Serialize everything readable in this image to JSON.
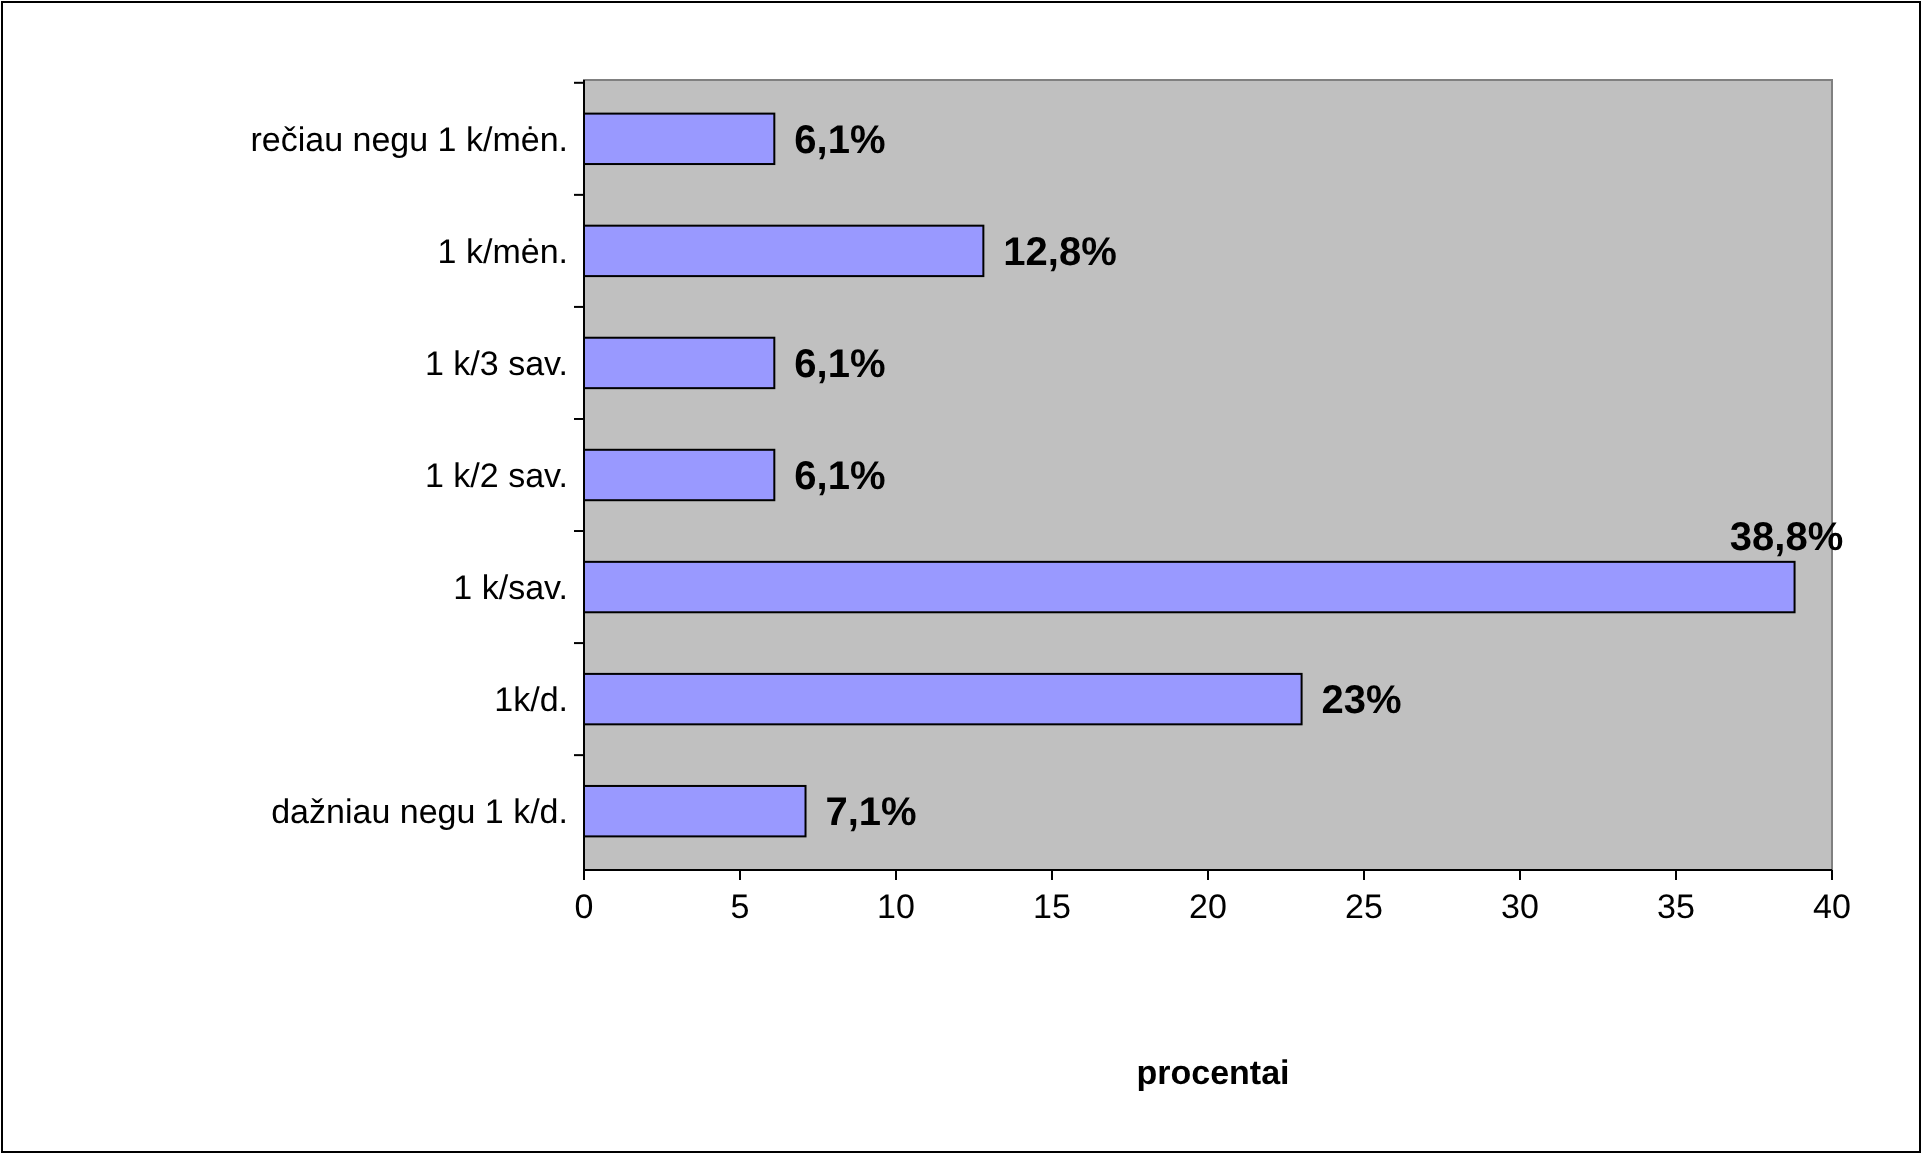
{
  "chart_data": {
    "type": "bar",
    "orientation": "horizontal",
    "xlabel": "procentai",
    "categories": [
      "rečiau negu 1 k/mėn.",
      "1 k/mėn.",
      "1 k/3 sav.",
      "1 k/2 sav.",
      "1 k/sav.",
      "1k/d.",
      "dažniau negu 1 k/d."
    ],
    "values": [
      6.1,
      12.8,
      6.1,
      6.1,
      38.8,
      23,
      7.1
    ],
    "value_labels": [
      "6,1%",
      "12,8%",
      "6,1%",
      "6,1%",
      "38,8%",
      "23%",
      "7,1%"
    ],
    "color": "#9999ff",
    "xlim": [
      0,
      40
    ],
    "xticks": [
      0,
      5,
      10,
      15,
      20,
      25,
      30,
      35,
      40
    ],
    "grid": false
  }
}
